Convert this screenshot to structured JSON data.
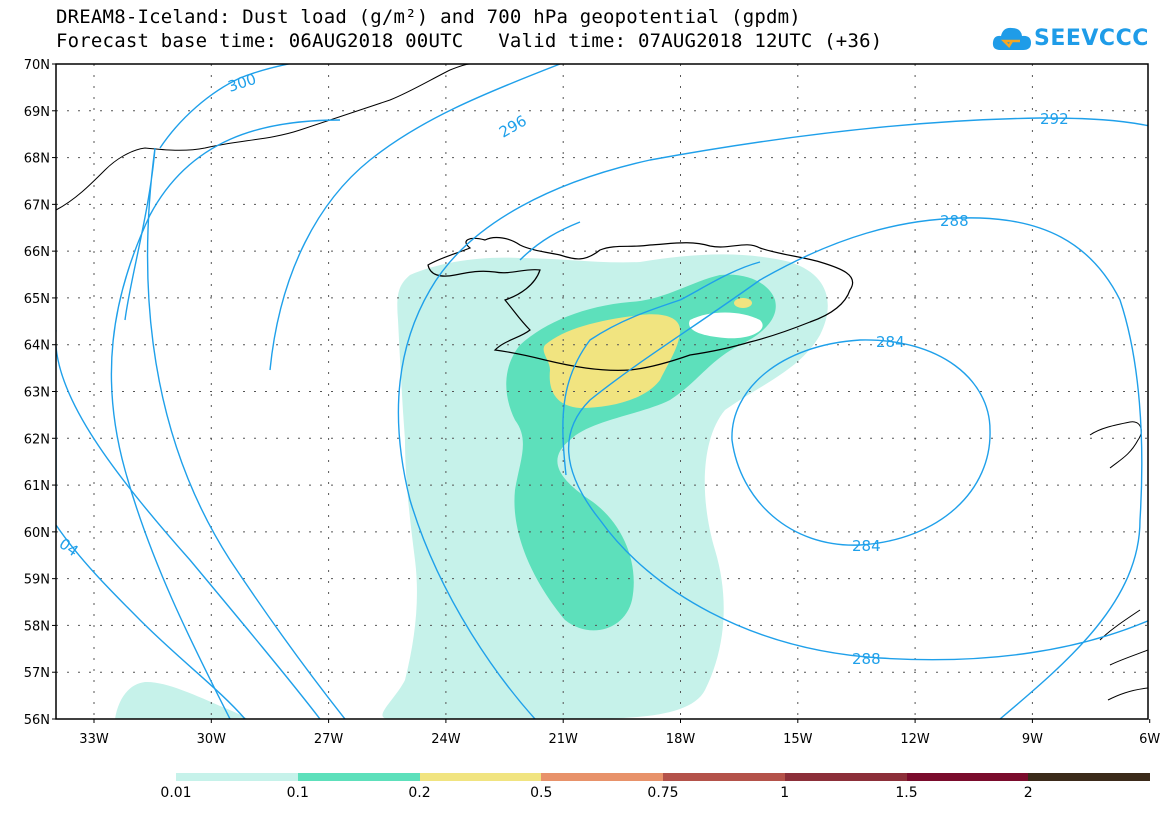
{
  "header": {
    "title_line1": "DREAM8-Iceland: Dust load (g/m²) and 700 hPa geopotential (gpdm)",
    "title_line2": "Forecast base time: 06AUG2018 00UTC   Valid time: 07AUG2018 12UTC (+36)",
    "logo_text": "SEEVCCC"
  },
  "map": {
    "lat_labels": [
      "70N",
      "69N",
      "68N",
      "67N",
      "66N",
      "65N",
      "64N",
      "63N",
      "62N",
      "61N",
      "60N",
      "59N",
      "58N",
      "57N",
      "56N"
    ],
    "lon_labels": [
      "33W",
      "30W",
      "27W",
      "24W",
      "21W",
      "18W",
      "15W",
      "12W",
      "9W",
      "6W"
    ],
    "contour_labels": {
      "c300": "300",
      "c296": "296",
      "c292": "292",
      "c288a": "288",
      "c288b": "288",
      "c284a": "284",
      "c284b": "284",
      "c304": "04"
    }
  },
  "legend": {
    "colors": [
      "#c6f2ea",
      "#5de0bb",
      "#f1e480",
      "#e8926a",
      "#b4524a",
      "#8c2f39",
      "#7a0b2c",
      "#3b2a1a",
      "#9b73a4"
    ],
    "labels": [
      "0.01",
      "0.1",
      "0.2",
      "0.5",
      "0.75",
      "1",
      "1.5",
      "2"
    ]
  },
  "colors": {
    "contour": "#1fa0ea",
    "dust_lowest": "#c6f2ea",
    "dust_low": "#5de0bb",
    "dust_mid": "#f1e480"
  }
}
